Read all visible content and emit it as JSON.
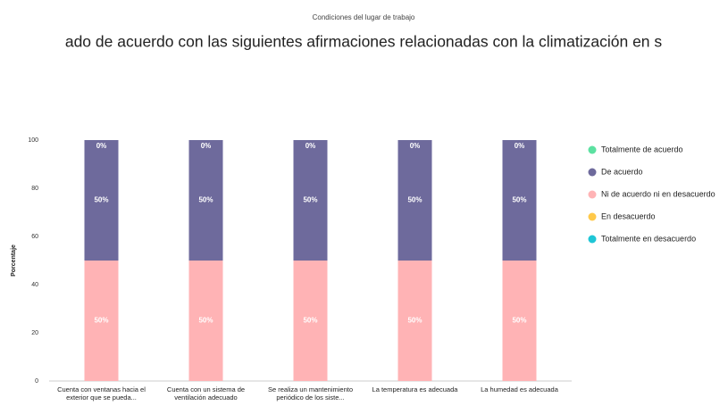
{
  "chart_data": {
    "type": "stacked_bar",
    "subtitle": "Condiciones del lugar de trabajo",
    "title": "ado de acuerdo con las siguientes afirmaciones relacionadas con la climatización en s",
    "ylabel": "Porcentaje",
    "categories": [
      "Cuenta con ventanas hacia el exterior que se pueda...",
      "Cuenta con un sistema de ventilación adecuado",
      "Se realiza un mantenimiento periódico de los siste...",
      "La temperatura es adecuada",
      "La humedad es adecuada"
    ],
    "series": [
      {
        "name": "Totalmente de acuerdo",
        "color": "#5ce1a1",
        "values": [
          0,
          0,
          0,
          0,
          0
        ],
        "value_labels": [
          "0%",
          "0%",
          "0%",
          "0%",
          "0%"
        ]
      },
      {
        "name": "De acuerdo",
        "color": "#6e6a9c",
        "values": [
          50,
          50,
          50,
          50,
          50
        ],
        "value_labels": [
          "50%",
          "50%",
          "50%",
          "50%",
          "50%"
        ]
      },
      {
        "name": "Ni de acuerdo ni en desacuerdo",
        "color": "#ffb3b5",
        "values": [
          50,
          50,
          50,
          50,
          50
        ],
        "value_labels": [
          "50%",
          "50%",
          "50%",
          "50%",
          "50%"
        ]
      },
      {
        "name": "En desacuerdo",
        "color": "#ffc94a",
        "values": [
          0,
          0,
          0,
          0,
          0
        ]
      },
      {
        "name": "Totalmente en desacuerdo",
        "color": "#1fc6d6",
        "values": [
          0,
          0,
          0,
          0,
          0
        ]
      }
    ],
    "ylim": [
      0,
      100
    ],
    "yticks": [
      0,
      20,
      40,
      60,
      80,
      100
    ],
    "grid": false,
    "legend": "right"
  }
}
